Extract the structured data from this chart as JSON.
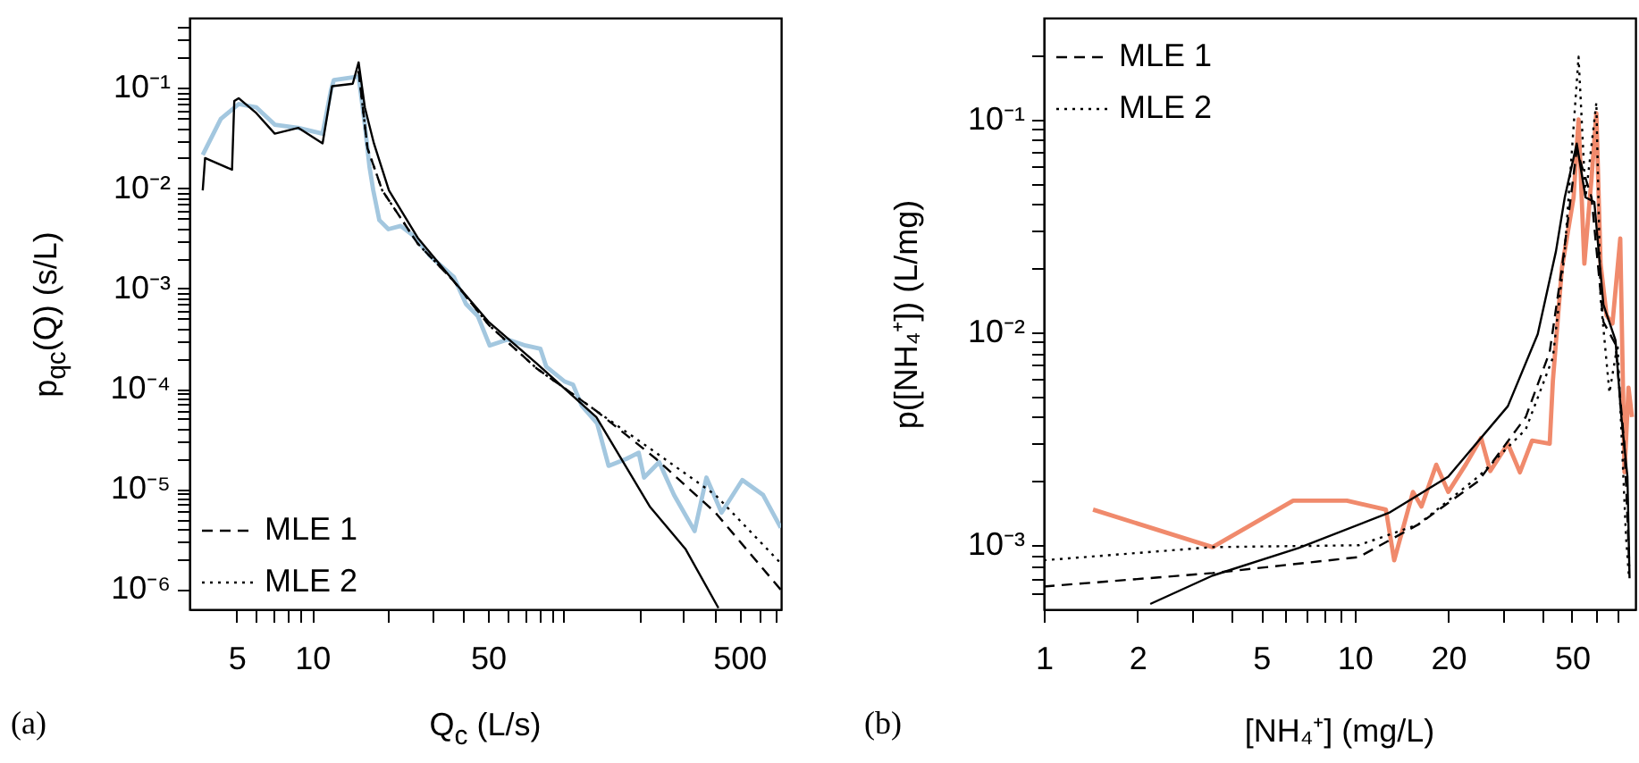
{
  "chart_data": [
    {
      "type": "line",
      "xlabel": "Q$_{c}$ (L/s)",
      "ylabel": "p$_{qc}$(Q) (s/L)",
      "annotations": [
        "(a)"
      ],
      "log": "xy",
      "legend": "bottom left",
      "xlim": [
        3.25,
        733
      ],
      "ylim": [
        6.3e-07,
        0.5
      ],
      "xticks": [
        5,
        {
          "value": 6,
          "label": null
        },
        {
          "value": 7,
          "label": null
        },
        {
          "value": 8,
          "label": null
        },
        {
          "value": 9,
          "label": null
        },
        10,
        {
          "value": 20,
          "label": null
        },
        {
          "value": 30,
          "label": null
        },
        {
          "value": 40,
          "label": null
        },
        50,
        {
          "value": 60,
          "label": null
        },
        {
          "value": 70,
          "label": null
        },
        {
          "value": 80,
          "label": null
        },
        {
          "value": 90,
          "label": null
        },
        {
          "value": 100,
          "label": null
        },
        {
          "value": 200,
          "label": null
        },
        {
          "value": 300,
          "label": null
        },
        {
          "value": 400,
          "label": null
        },
        500,
        {
          "value": 600,
          "label": null
        },
        {
          "value": 700,
          "label": null
        }
      ],
      "yticks": [
        {
          "value": 1e-06,
          "label": "10⁻⁶"
        },
        {
          "value": 2e-06,
          "label": null
        },
        {
          "value": 3e-06,
          "label": null
        },
        {
          "value": 4e-06,
          "label": null
        },
        {
          "value": 5e-06,
          "label": null
        },
        {
          "value": 6e-06,
          "label": null
        },
        {
          "value": 7e-06,
          "label": null
        },
        {
          "value": 8e-06,
          "label": null
        },
        {
          "value": 9e-06,
          "label": null
        },
        {
          "value": 1e-05,
          "label": "10⁻⁵"
        },
        {
          "value": 2e-05,
          "label": null
        },
        {
          "value": 3e-05,
          "label": null
        },
        {
          "value": 4e-05,
          "label": null
        },
        {
          "value": 5e-05,
          "label": null
        },
        {
          "value": 6e-05,
          "label": null
        },
        {
          "value": 7e-05,
          "label": null
        },
        {
          "value": 8e-05,
          "label": null
        },
        {
          "value": 9e-05,
          "label": null
        },
        {
          "value": 0.0001,
          "label": "10⁻⁴"
        },
        {
          "value": 0.0002,
          "label": null
        },
        {
          "value": 0.0003,
          "label": null
        },
        {
          "value": 0.0004,
          "label": null
        },
        {
          "value": 0.0005,
          "label": null
        },
        {
          "value": 0.0006,
          "label": null
        },
        {
          "value": 0.0007,
          "label": null
        },
        {
          "value": 0.0008,
          "label": null
        },
        {
          "value": 0.0009,
          "label": null
        },
        {
          "value": 0.001,
          "label": "10⁻³"
        },
        {
          "value": 0.002,
          "label": null
        },
        {
          "value": 0.003,
          "label": null
        },
        {
          "value": 0.004,
          "label": null
        },
        {
          "value": 0.005,
          "label": null
        },
        {
          "value": 0.006,
          "label": null
        },
        {
          "value": 0.007,
          "label": null
        },
        {
          "value": 0.008,
          "label": null
        },
        {
          "value": 0.009,
          "label": null
        },
        {
          "value": 0.01,
          "label": "10⁻²"
        },
        {
          "value": 0.02,
          "label": null
        },
        {
          "value": 0.03,
          "label": null
        },
        {
          "value": 0.04,
          "label": null
        },
        {
          "value": 0.05,
          "label": null
        },
        {
          "value": 0.06,
          "label": null
        },
        {
          "value": 0.07,
          "label": null
        },
        {
          "value": 0.08,
          "label": null
        },
        {
          "value": 0.09,
          "label": null
        },
        {
          "value": 0.1,
          "label": "10⁻¹"
        },
        {
          "value": 0.2,
          "label": null
        },
        {
          "value": 0.3,
          "label": null
        },
        {
          "value": 0.4,
          "label": null
        }
      ],
      "series": [
        {
          "color": "#a3c7df",
          "line_style": "solid",
          "x": [
            3.67,
            4.33,
            5.1,
            6.0,
            7.1,
            8.8,
            11.0,
            11.9,
            12.2,
            15.3,
            16.1,
            16.9,
            17.5,
            18.5,
            20.1,
            22.5,
            25.1,
            29.5,
            36.6,
            40.9,
            45.6,
            50.8,
            59.9,
            70.5,
            80.9,
            85.3,
            101,
            109,
            118,
            136,
            151,
            178,
            199,
            209,
            240,
            275,
            332,
            370,
            425,
            514,
            622,
            731
          ],
          "values": [
            0.0215,
            0.049,
            0.069,
            0.064,
            0.043,
            0.04,
            0.035,
            0.097,
            0.12,
            0.13,
            0.049,
            0.0164,
            0.0095,
            0.0048,
            0.0039,
            0.0042,
            0.0034,
            0.0021,
            0.0013,
            0.0007,
            0.00053,
            0.00027,
            0.00031,
            0.00027,
            0.00025,
            0.000166,
            0.000118,
            0.00011,
            6.8e-05,
            4.5e-05,
            1.7e-05,
            2e-05,
            2.3e-05,
            1.3e-05,
            1.85e-05,
            8.7e-06,
            3.8e-06,
            1.3e-05,
            5.8e-06,
            1.23e-05,
            8.7e-06,
            4.1e-06
          ]
        },
        {
          "color": "#000000",
          "line_style": "solid",
          "x": [
            3.67,
            3.75,
            4.8,
            4.9,
            5.1,
            6.0,
            7.1,
            8.8,
            11.0,
            12.0,
            14.5,
            15.3,
            16.2,
            17.6,
            20.2,
            26.3,
            36.4,
            50.5,
            78.2,
            135,
            221,
            306,
            413
          ],
          "values": [
            0.0095,
            0.02,
            0.0153,
            0.074,
            0.079,
            0.056,
            0.035,
            0.04,
            0.028,
            0.104,
            0.11,
            0.18,
            0.064,
            0.028,
            0.0095,
            0.0032,
            0.0012,
            0.00046,
            0.000178,
            5.2e-05,
            6.6e-06,
            2.5e-06,
            6.5e-07
          ]
        },
        {
          "name": "MLE 1",
          "color": "#000000",
          "line_style": "dashed",
          "x": [
            15.3,
            16.6,
            19,
            26.3,
            36.4,
            50.5,
            78,
            135,
            233,
            402,
            733
          ],
          "values": [
            0.147,
            0.025,
            0.0095,
            0.0028,
            0.0012,
            0.00043,
            0.00016,
            6e-05,
            2e-05,
            5.8e-06,
            9.8e-07
          ]
        },
        {
          "name": "MLE 2",
          "color": "#000000",
          "line_style": "dotted",
          "x": [
            15.3,
            16.6,
            19,
            26.3,
            36.4,
            50.5,
            78,
            135,
            233,
            402,
            733
          ],
          "values": [
            0.147,
            0.025,
            0.0095,
            0.0028,
            0.0012,
            0.00043,
            0.00016,
            6e-05,
            2.3e-05,
            8.7e-06,
            1.8e-06
          ]
        }
      ]
    },
    {
      "type": "line",
      "xlabel": "[NH₄⁺] (mg/L)",
      "ylabel": "p([NH₄⁺]) (L/mg)",
      "annotations": [
        "(b)"
      ],
      "log": "xy",
      "legend": "top left",
      "xlim": [
        1,
        80
      ],
      "ylim": [
        0.0005,
        0.3
      ],
      "xticks": [
        1,
        2,
        {
          "value": 3,
          "label": null
        },
        {
          "value": 4,
          "label": null
        },
        5,
        {
          "value": 6,
          "label": null
        },
        {
          "value": 7,
          "label": null
        },
        {
          "value": 8,
          "label": null
        },
        {
          "value": 9,
          "label": null
        },
        10,
        20,
        {
          "value": 30,
          "label": null
        },
        {
          "value": 40,
          "label": null
        },
        50,
        {
          "value": 60,
          "label": null
        },
        {
          "value": 70,
          "label": null
        }
      ],
      "yticks": [
        {
          "value": 0.0006,
          "label": null
        },
        {
          "value": 0.0007,
          "label": null
        },
        {
          "value": 0.0008,
          "label": null
        },
        {
          "value": 0.0009,
          "label": null
        },
        {
          "value": 0.001,
          "label": "10⁻³"
        },
        {
          "value": 0.002,
          "label": null
        },
        {
          "value": 0.003,
          "label": null
        },
        {
          "value": 0.004,
          "label": null
        },
        {
          "value": 0.005,
          "label": null
        },
        {
          "value": 0.006,
          "label": null
        },
        {
          "value": 0.007,
          "label": null
        },
        {
          "value": 0.008,
          "label": null
        },
        {
          "value": 0.009,
          "label": null
        },
        {
          "value": 0.01,
          "label": "10⁻²"
        },
        {
          "value": 0.02,
          "label": null
        },
        {
          "value": 0.03,
          "label": null
        },
        {
          "value": 0.04,
          "label": null
        },
        {
          "value": 0.05,
          "label": null
        },
        {
          "value": 0.06,
          "label": null
        },
        {
          "value": 0.07,
          "label": null
        },
        {
          "value": 0.08,
          "label": null
        },
        {
          "value": 0.09,
          "label": null
        },
        {
          "value": 0.1,
          "label": "10⁻¹"
        },
        {
          "value": 0.2,
          "label": null
        }
      ],
      "series": [
        {
          "color": "#f08a6c",
          "line_style": "solid",
          "x": [
            1.44,
            3.49,
            6.34,
            9.44,
            12.6,
            13.4,
            15.4,
            16.4,
            18.3,
            20.0,
            22.8,
            25.5,
            27.3,
            31.1,
            34.0,
            37.2,
            42.4,
            43.4,
            46.4,
            50.6,
            52.5,
            54.8,
            57.8,
            59.9,
            61.8,
            64.6,
            67.5,
            71.5,
            73.8,
            76.0,
            78.0
          ],
          "values": [
            0.00147,
            0.00098,
            0.00162,
            0.00162,
            0.00147,
            0.00085,
            0.00178,
            0.00152,
            0.00239,
            0.00178,
            0.0024,
            0.00319,
            0.00223,
            0.003,
            0.0022,
            0.0031,
            0.003,
            0.0059,
            0.02,
            0.043,
            0.1,
            0.021,
            0.053,
            0.107,
            0.021,
            0.012,
            0.011,
            0.0276,
            0.0022,
            0.0055,
            0.004
          ]
        },
        {
          "color": "#000000",
          "line_style": "solid",
          "x": [
            2.2,
            3.49,
            6.6,
            12.9,
            20.0,
            31.1,
            38.8,
            44.4,
            47.4,
            51.8,
            55.3,
            59.0,
            63.1,
            69.0,
            72.1,
            75.4,
            76.6
          ],
          "values": [
            0.00053,
            0.00072,
            0.00097,
            0.00142,
            0.0021,
            0.0045,
            0.0098,
            0.024,
            0.043,
            0.077,
            0.043,
            0.041,
            0.0135,
            0.0092,
            0.004,
            0.0021,
            0.0007
          ]
        },
        {
          "name": "MLE 1",
          "color": "#000000",
          "line_style": "dashed",
          "x": [
            1,
            3.49,
            10.3,
            16.0,
            25.0,
            35.5,
            42.4,
            46.4,
            51.8,
            57.8,
            63.1,
            69.0,
            73.8,
            76.5
          ],
          "values": [
            0.00064,
            0.00074,
            0.00088,
            0.00125,
            0.002,
            0.004,
            0.0081,
            0.02,
            0.072,
            0.043,
            0.0112,
            0.0088,
            0.0029,
            0.0008
          ]
        },
        {
          "name": "MLE 2",
          "color": "#000000",
          "line_style": "dotted",
          "x": [
            1,
            3.49,
            10.3,
            16.0,
            25.0,
            35.5,
            43.4,
            47.4,
            52.5,
            55.3,
            59.9,
            61.8,
            66,
            70.1,
            74.6,
            76.3
          ],
          "values": [
            0.00085,
            0.00098,
            0.001,
            0.00125,
            0.0021,
            0.0035,
            0.0076,
            0.024,
            0.197,
            0.043,
            0.12,
            0.0145,
            0.0052,
            0.0088,
            0.0011,
            0.0007
          ]
        }
      ]
    }
  ]
}
